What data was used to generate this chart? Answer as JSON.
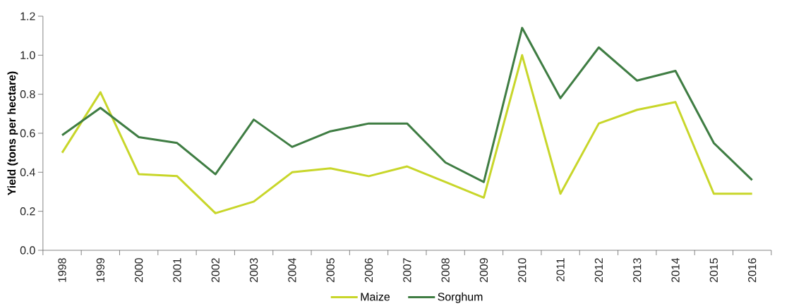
{
  "chart_data": {
    "type": "line",
    "ylabel": "Yield (tons per hectare)",
    "categories": [
      "1998",
      "1999",
      "2000",
      "2001",
      "2002",
      "2003",
      "2004",
      "2005",
      "2006",
      "2007",
      "2008",
      "2009",
      "2010",
      "2011",
      "2012",
      "2013",
      "2014",
      "2015",
      "2016"
    ],
    "series": [
      {
        "name": "Maize",
        "color": "#c8d62a",
        "values": [
          0.5,
          0.81,
          0.39,
          0.38,
          0.19,
          0.25,
          0.4,
          0.42,
          0.38,
          0.43,
          0.35,
          0.27,
          1.0,
          0.29,
          0.65,
          0.72,
          0.76,
          0.29,
          0.29
        ]
      },
      {
        "name": "Sorghum",
        "color": "#3f7d43",
        "values": [
          0.59,
          0.73,
          0.58,
          0.55,
          0.39,
          0.67,
          0.53,
          0.61,
          0.65,
          0.65,
          0.45,
          0.35,
          1.14,
          0.78,
          1.04,
          0.87,
          0.92,
          0.55,
          0.36
        ]
      }
    ],
    "ylim": [
      0,
      1.2
    ],
    "yticks": [
      {
        "value": 0,
        "label": "0.0"
      },
      {
        "value": 0.2,
        "label": "0.2"
      },
      {
        "value": 0.4,
        "label": "0.4"
      },
      {
        "value": 0.6,
        "label": "0.6"
      },
      {
        "value": 0.8,
        "label": "0.8"
      },
      {
        "value": 1.0,
        "label": "1.0"
      },
      {
        "value": 1.2,
        "label": "1.2"
      }
    ],
    "legend": "bottom",
    "grid": false,
    "marker": "none",
    "line_style": "solid"
  }
}
